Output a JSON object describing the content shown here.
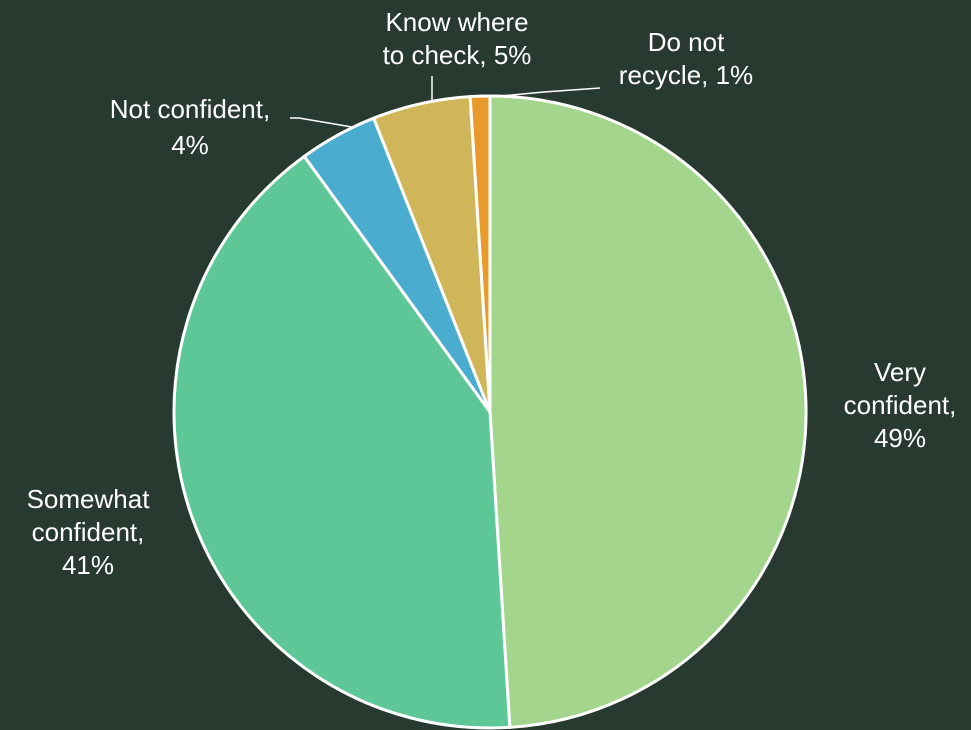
{
  "chart_data": {
    "type": "pie",
    "title": "",
    "slices": [
      {
        "label": "Very confident",
        "value": 49,
        "data_label": [
          "Very",
          "confident,",
          "49%"
        ],
        "color": "#a3d68c"
      },
      {
        "label": "Somewhat confident",
        "value": 41,
        "data_label": [
          "Somewhat",
          "confident,",
          "41%"
        ],
        "color": "#5ec797"
      },
      {
        "label": "Not confident",
        "value": 4,
        "data_label": [
          "Not confident,",
          "4%"
        ],
        "color": "#4aadd0"
      },
      {
        "label": "Know where to check",
        "value": 5,
        "data_label": [
          "Know where",
          "to check, 5%"
        ],
        "color": "#d1b659"
      },
      {
        "label": "Do not recycle",
        "value": 1,
        "data_label": [
          "Do not",
          "recycle, 1%"
        ],
        "color": "#e89b2c"
      }
    ]
  }
}
